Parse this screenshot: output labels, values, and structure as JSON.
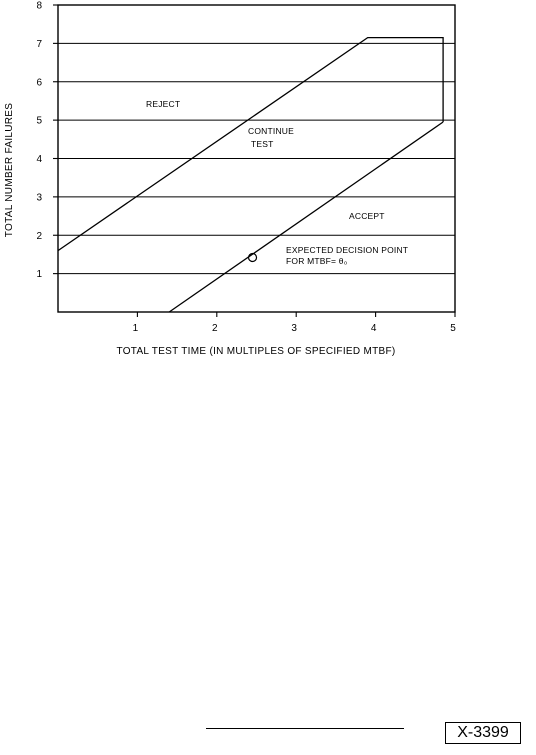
{
  "chart_data": {
    "type": "line",
    "xlabel": "TOTAL TEST TIME (IN MULTIPLES OF SPECIFIED MTBF)",
    "ylabel": "TOTAL NUMBER FAILURES",
    "xlim": [
      0,
      5
    ],
    "ylim": [
      0,
      8
    ],
    "x_ticks": [
      "1",
      "2",
      "3",
      "4",
      "5"
    ],
    "y_ticks": [
      "1",
      "2",
      "3",
      "4",
      "5",
      "6",
      "7",
      "8"
    ],
    "grid": "horizontal",
    "series": [
      {
        "role": "reject-boundary",
        "points": [
          [
            0,
            1.6
          ],
          [
            3.9,
            7.15
          ],
          [
            4.85,
            7.15
          ],
          [
            4.85,
            4.95
          ]
        ]
      },
      {
        "role": "accept-boundary",
        "points": [
          [
            1.4,
            0
          ],
          [
            4.85,
            4.95
          ]
        ]
      }
    ],
    "regions": {
      "reject": "REJECT",
      "continue_line1": "CONTINUE",
      "continue_line2": "TEST",
      "accept": "ACCEPT"
    },
    "annotation": {
      "line1": "EXPECTED DECISION POINT",
      "line2": "FOR MTBF= θ₀",
      "point": [
        2.45,
        1.42
      ]
    }
  },
  "footer": {
    "figure_id": "X-3399"
  }
}
